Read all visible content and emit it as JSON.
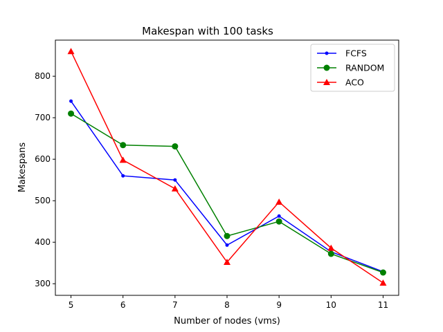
{
  "chart_data": {
    "type": "line",
    "title": "Makespan with 100 tasks",
    "xlabel": "Number of nodes (vms)",
    "ylabel": "Makespans",
    "x": [
      5,
      6,
      7,
      8,
      9,
      10,
      11
    ],
    "xlim": [
      4.7,
      11.3
    ],
    "ylim": [
      272,
      887
    ],
    "xticks": [
      5,
      6,
      7,
      8,
      9,
      10,
      11
    ],
    "yticks": [
      300,
      400,
      500,
      600,
      700,
      800
    ],
    "grid": false,
    "legend_position": "top-right",
    "series": [
      {
        "name": "FCFS",
        "color": "#0000ff",
        "marker": "point",
        "values": [
          740,
          560,
          550,
          393,
          463,
          377,
          329
        ]
      },
      {
        "name": "RANDOM",
        "color": "#008000",
        "marker": "circle",
        "values": [
          710,
          634,
          631,
          415,
          450,
          372,
          327
        ]
      },
      {
        "name": "ACO",
        "color": "#ff0000",
        "marker": "triangle",
        "values": [
          860,
          598,
          529,
          352,
          497,
          386,
          302
        ]
      }
    ]
  }
}
